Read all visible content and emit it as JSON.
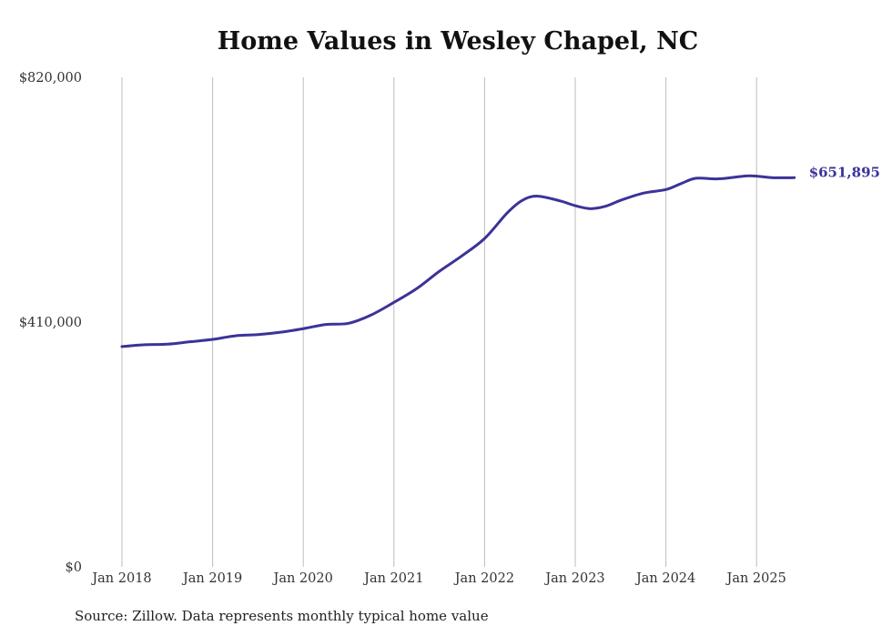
{
  "chart_data": {
    "type": "line",
    "title": "Home Values in Wesley Chapel, NC",
    "source": "Source: Zillow. Data represents monthly typical home value",
    "xlabel": "",
    "ylabel": "",
    "ylim": [
      0,
      820000
    ],
    "y_ticks": [
      {
        "value": 0,
        "label": "$0"
      },
      {
        "value": 410000,
        "label": "$410,000"
      },
      {
        "value": 820000,
        "label": "$820,000"
      }
    ],
    "x_ticks": [
      {
        "value": "2018-01",
        "label": "Jan 2018"
      },
      {
        "value": "2019-01",
        "label": "Jan 2019"
      },
      {
        "value": "2020-01",
        "label": "Jan 2020"
      },
      {
        "value": "2021-01",
        "label": "Jan 2021"
      },
      {
        "value": "2022-01",
        "label": "Jan 2022"
      },
      {
        "value": "2023-01",
        "label": "Jan 2023"
      },
      {
        "value": "2024-01",
        "label": "Jan 2024"
      },
      {
        "value": "2025-01",
        "label": "Jan 2025"
      }
    ],
    "grid": "vertical",
    "series": [
      {
        "name": "Typical home value",
        "color": "#3b3399",
        "end_label": "$651,895",
        "points": [
          [
            "2018-01",
            369000
          ],
          [
            "2018-04",
            372000
          ],
          [
            "2018-07",
            373000
          ],
          [
            "2018-10",
            377000
          ],
          [
            "2019-01",
            381000
          ],
          [
            "2019-04",
            387000
          ],
          [
            "2019-07",
            389000
          ],
          [
            "2019-10",
            393000
          ],
          [
            "2020-01",
            399000
          ],
          [
            "2020-04",
            406000
          ],
          [
            "2020-07",
            408000
          ],
          [
            "2020-10",
            422000
          ],
          [
            "2021-01",
            443000
          ],
          [
            "2021-04",
            466000
          ],
          [
            "2021-07",
            495000
          ],
          [
            "2021-10",
            521000
          ],
          [
            "2022-01",
            550000
          ],
          [
            "2022-04",
            593000
          ],
          [
            "2022-06",
            614000
          ],
          [
            "2022-08",
            621000
          ],
          [
            "2022-11",
            613000
          ],
          [
            "2023-01",
            605000
          ],
          [
            "2023-03",
            600000
          ],
          [
            "2023-05",
            604000
          ],
          [
            "2023-07",
            614000
          ],
          [
            "2023-10",
            626000
          ],
          [
            "2024-01",
            632000
          ],
          [
            "2024-03",
            642000
          ],
          [
            "2024-05",
            651000
          ],
          [
            "2024-08",
            650000
          ],
          [
            "2024-12",
            655000
          ],
          [
            "2025-03",
            652000
          ],
          [
            "2025-06",
            651895
          ]
        ]
      }
    ]
  }
}
